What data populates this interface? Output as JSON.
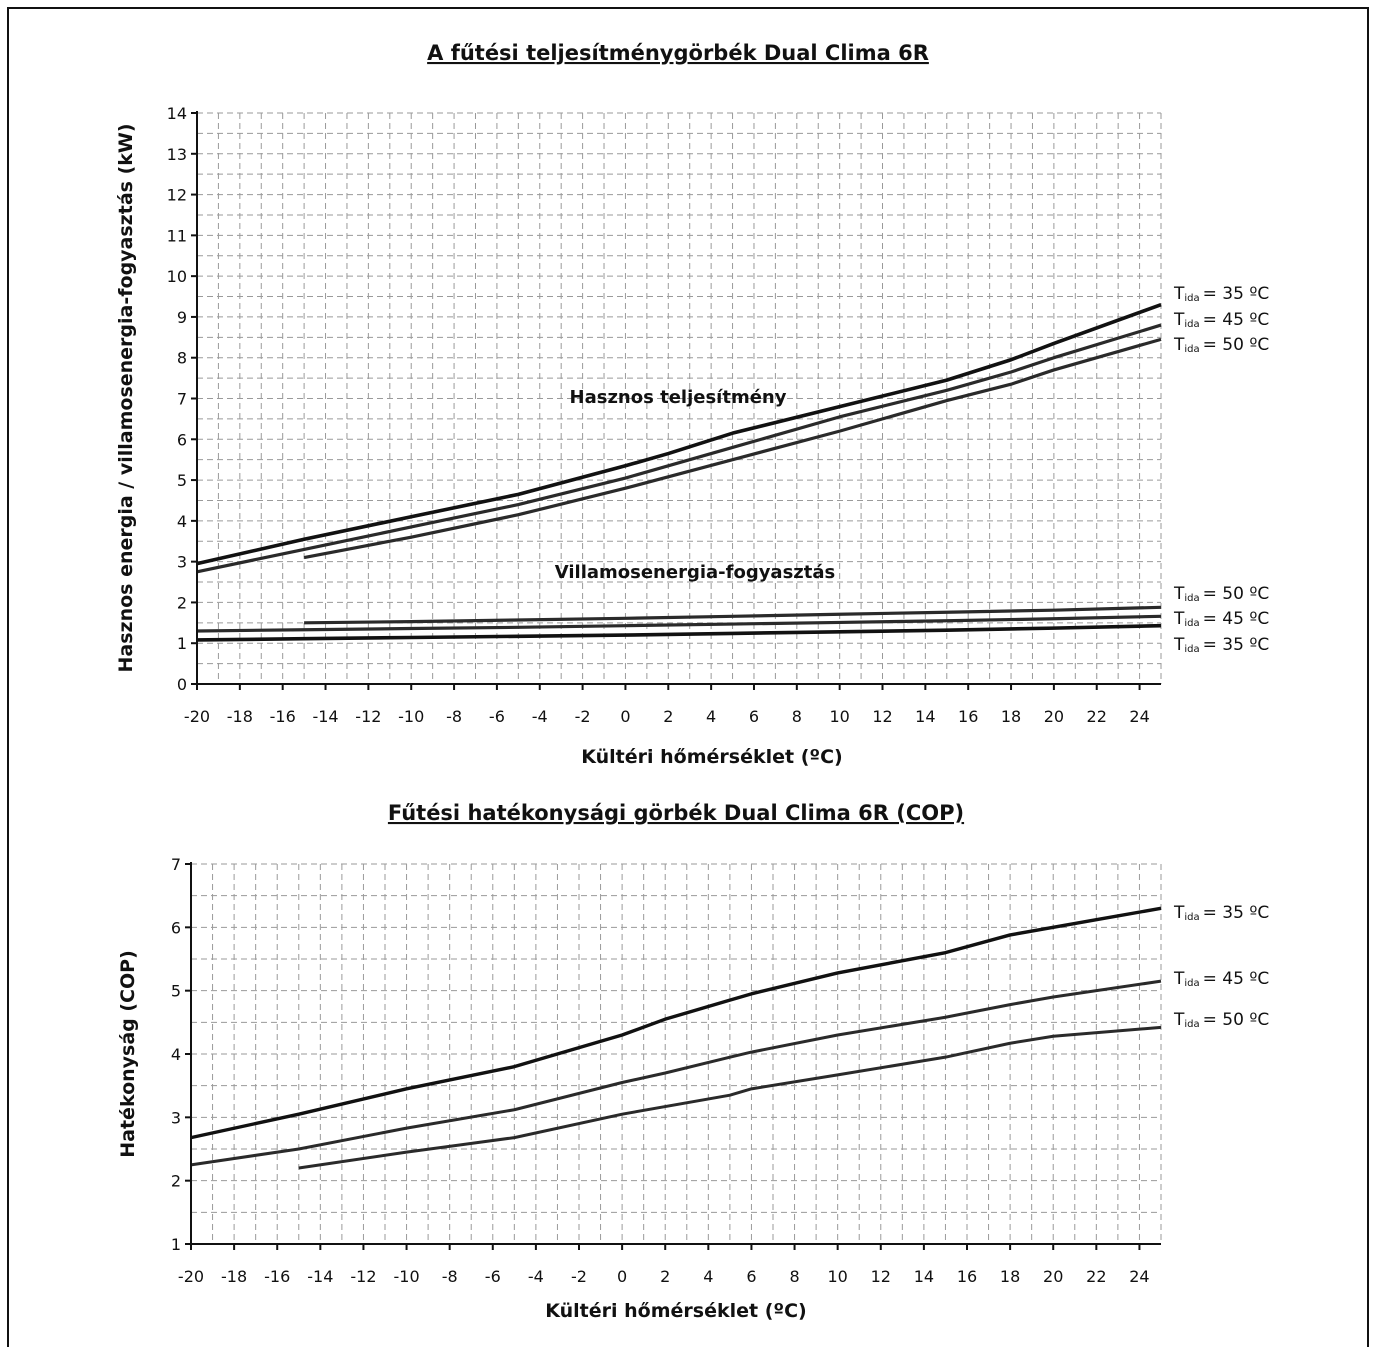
{
  "chart_data": [
    {
      "type": "line",
      "title": "A fűtési teljesítménygörbék Dual Clima 6R",
      "xlabel": "Kültéri hőmérséklet (ºC)",
      "ylabel": "Hasznos energia / villamosenergia-fogyasztás (kW)",
      "xlim": [
        -20,
        25
      ],
      "ylim": [
        0,
        14
      ],
      "x_ticks": [
        -20,
        -18,
        -16,
        -14,
        -12,
        -10,
        -8,
        -6,
        -4,
        -2,
        0,
        2,
        4,
        6,
        8,
        10,
        12,
        14,
        16,
        18,
        20,
        22,
        24
      ],
      "y_ticks": [
        0,
        1,
        2,
        3,
        4,
        5,
        6,
        7,
        8,
        9,
        10,
        11,
        12,
        13,
        14
      ],
      "grid": true,
      "annotations": [
        "Hasznos teljesítmény",
        "Villamosenergia-fogyasztás"
      ],
      "series": [
        {
          "group": "Hasznos teljesítmény",
          "label_sub": "ida",
          "label_value": "= 35 ºC",
          "x": [
            -20,
            -15,
            -10,
            -5,
            0,
            2,
            5,
            10,
            15,
            18,
            20,
            25
          ],
          "y": [
            2.95,
            3.55,
            4.1,
            4.65,
            5.35,
            5.65,
            6.15,
            6.8,
            7.45,
            7.95,
            8.35,
            9.3
          ]
        },
        {
          "group": "Hasznos teljesítmény",
          "label_sub": "ida",
          "label_value": "= 45 ºC",
          "x": [
            -20,
            -15,
            -10,
            -5,
            0,
            5,
            10,
            15,
            18,
            20,
            25
          ],
          "y": [
            2.75,
            3.3,
            3.85,
            4.4,
            5.05,
            5.8,
            6.55,
            7.2,
            7.65,
            8.0,
            8.8
          ]
        },
        {
          "group": "Hasznos teljesítmény",
          "label_sub": "ida",
          "label_value": "= 50 ºC",
          "x": [
            -15,
            -10,
            -5,
            0,
            5,
            10,
            15,
            18,
            20,
            25
          ],
          "y": [
            3.1,
            3.6,
            4.15,
            4.8,
            5.5,
            6.2,
            6.95,
            7.35,
            7.7,
            8.45
          ]
        },
        {
          "group": "Villamosenergia-fogyasztás",
          "label_sub": "ida",
          "label_value": "= 50 ºC",
          "x": [
            -15,
            -10,
            -5,
            0,
            5,
            10,
            15,
            20,
            25
          ],
          "y": [
            1.5,
            1.53,
            1.57,
            1.61,
            1.66,
            1.71,
            1.76,
            1.81,
            1.88
          ]
        },
        {
          "group": "Villamosenergia-fogyasztás",
          "label_sub": "ida",
          "label_value": "= 45 ºC",
          "x": [
            -20,
            -15,
            -10,
            -5,
            0,
            5,
            10,
            15,
            20,
            25
          ],
          "y": [
            1.3,
            1.33,
            1.36,
            1.39,
            1.43,
            1.47,
            1.51,
            1.55,
            1.6,
            1.66
          ]
        },
        {
          "group": "Villamosenergia-fogyasztás",
          "label_sub": "ida",
          "label_value": "= 35 ºC",
          "x": [
            -20,
            -15,
            -10,
            -5,
            0,
            5,
            10,
            15,
            20,
            25
          ],
          "y": [
            1.08,
            1.11,
            1.14,
            1.17,
            1.2,
            1.24,
            1.28,
            1.32,
            1.37,
            1.43
          ]
        }
      ]
    },
    {
      "type": "line",
      "title": "Fűtési hatékonysági görbék Dual Clima 6R (COP)",
      "xlabel": "Kültéri hőmérséklet (ºC)",
      "ylabel": "Hatékonyság (COP)",
      "xlim": [
        -20,
        25
      ],
      "ylim": [
        1,
        7
      ],
      "x_ticks": [
        -20,
        -18,
        -16,
        -14,
        -12,
        -10,
        -8,
        -6,
        -4,
        -2,
        0,
        2,
        4,
        6,
        8,
        10,
        12,
        14,
        16,
        18,
        20,
        22,
        24
      ],
      "y_ticks": [
        1,
        2,
        3,
        4,
        5,
        6,
        7
      ],
      "grid": true,
      "series": [
        {
          "label_sub": "ida",
          "label_value": "= 35 ºC",
          "x": [
            -20,
            -15,
            -10,
            -5,
            0,
            2,
            5,
            6,
            10,
            15,
            18,
            20,
            22,
            25
          ],
          "y": [
            2.68,
            3.05,
            3.45,
            3.8,
            4.3,
            4.55,
            4.85,
            4.95,
            5.28,
            5.6,
            5.88,
            6.0,
            6.12,
            6.3
          ]
        },
        {
          "label_sub": "ida",
          "label_value": "= 45 ºC",
          "x": [
            -20,
            -15,
            -10,
            -5,
            0,
            2,
            5,
            6,
            10,
            15,
            18,
            20,
            25
          ],
          "y": [
            2.25,
            2.5,
            2.83,
            3.12,
            3.55,
            3.7,
            3.95,
            4.03,
            4.3,
            4.58,
            4.78,
            4.9,
            5.15
          ]
        },
        {
          "label_sub": "ida",
          "label_value": "= 50 ºC",
          "x": [
            -15,
            -10,
            -5,
            0,
            5,
            6,
            10,
            15,
            18,
            20,
            25
          ],
          "y": [
            2.2,
            2.45,
            2.68,
            3.05,
            3.35,
            3.45,
            3.67,
            3.95,
            4.17,
            4.28,
            4.42
          ]
        }
      ]
    }
  ]
}
